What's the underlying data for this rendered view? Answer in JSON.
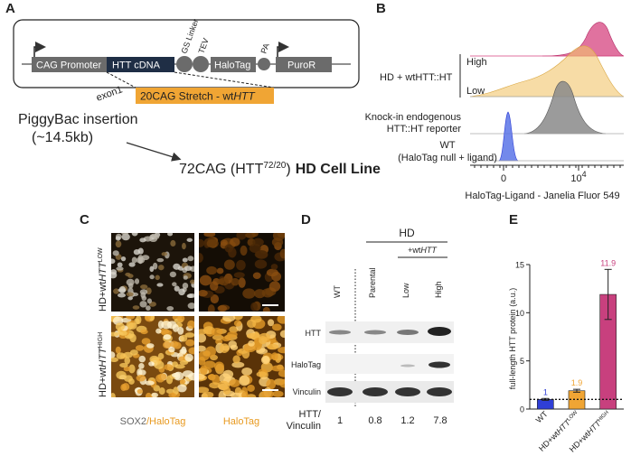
{
  "figure": {
    "A": {
      "label": "A",
      "construct": {
        "cag_promoter": "CAG Promoter",
        "htt_cdna": "HTT cDNA",
        "gs_linker": "GS Linker",
        "tev": "TEV",
        "halotag": "HaloTag",
        "pa": "PA",
        "puror": "PuroR",
        "exon1": "exon1",
        "stretch": [
          "20CAG Stretch - wt",
          "HTT"
        ]
      },
      "insertion": [
        "PiggyBac insertion",
        "(~14.5kb)"
      ],
      "cell_line": {
        "prefix": "72CAG (HTT",
        "sup": "72/20",
        "suffix": ")",
        "bold": "HD Cell Line"
      }
    },
    "B": {
      "label": "B",
      "rows": {
        "group": "HD + wtHTT::HT",
        "high": "High",
        "low": "Low",
        "knockin": [
          "Knock-in endogenous",
          "HTT::HT reporter"
        ],
        "wt": [
          "WT",
          "(HaloTag null + ligand)"
        ]
      },
      "xtick_zero": "0",
      "xtick_high": {
        "base": "10",
        "exp": "4"
      },
      "xlabel": "HaloTag-Ligand - Janelia Fluor 549"
    },
    "C": {
      "label": "C",
      "rows": [
        {
          "prefix": "HD+wt",
          "italic": "HTT",
          "sup": "LOW"
        },
        {
          "prefix": "HD+wt",
          "italic": "HTT",
          "sup": "HIGH"
        }
      ],
      "columns": [
        [
          "SOX2",
          "/HaloTag"
        ],
        "HaloTag"
      ]
    },
    "D": {
      "label": "D",
      "group": "HD",
      "subgroup": [
        "+wt",
        "HTT"
      ],
      "lanes": [
        "WT",
        "Parental",
        "Low",
        "High"
      ],
      "rows": [
        "HTT",
        "HaloTag",
        "Vinculin"
      ],
      "ratio_label": [
        "HTT/",
        "Vinculin"
      ],
      "ratios": [
        "1",
        "0.8",
        "1.2",
        "7.8"
      ]
    }
  },
  "chart_data": {
    "type": "bar",
    "panel_label": "E",
    "ylabel": "full-length HTT protein (a.u.)",
    "categories": [
      [
        {
          "text": "WT",
          "style": "normal"
        }
      ],
      [
        {
          "text": "HD+wt",
          "style": "normal"
        },
        {
          "text": "HTT",
          "style": "italic"
        },
        {
          "text": "LOW",
          "style": "sup"
        }
      ],
      [
        {
          "text": "HD+wt",
          "style": "normal"
        },
        {
          "text": "HTT",
          "style": "italic"
        },
        {
          "text": "HIGH",
          "style": "sup"
        }
      ]
    ],
    "values": [
      1,
      1.9,
      11.9
    ],
    "errors": [
      0.1,
      0.15,
      2.6
    ],
    "colors": [
      "#2f3fd6",
      "#f0a534",
      "#c8407e"
    ],
    "ylim": [
      0,
      15
    ],
    "yticks": [
      0,
      5,
      10,
      15
    ],
    "reference_line": 1
  }
}
